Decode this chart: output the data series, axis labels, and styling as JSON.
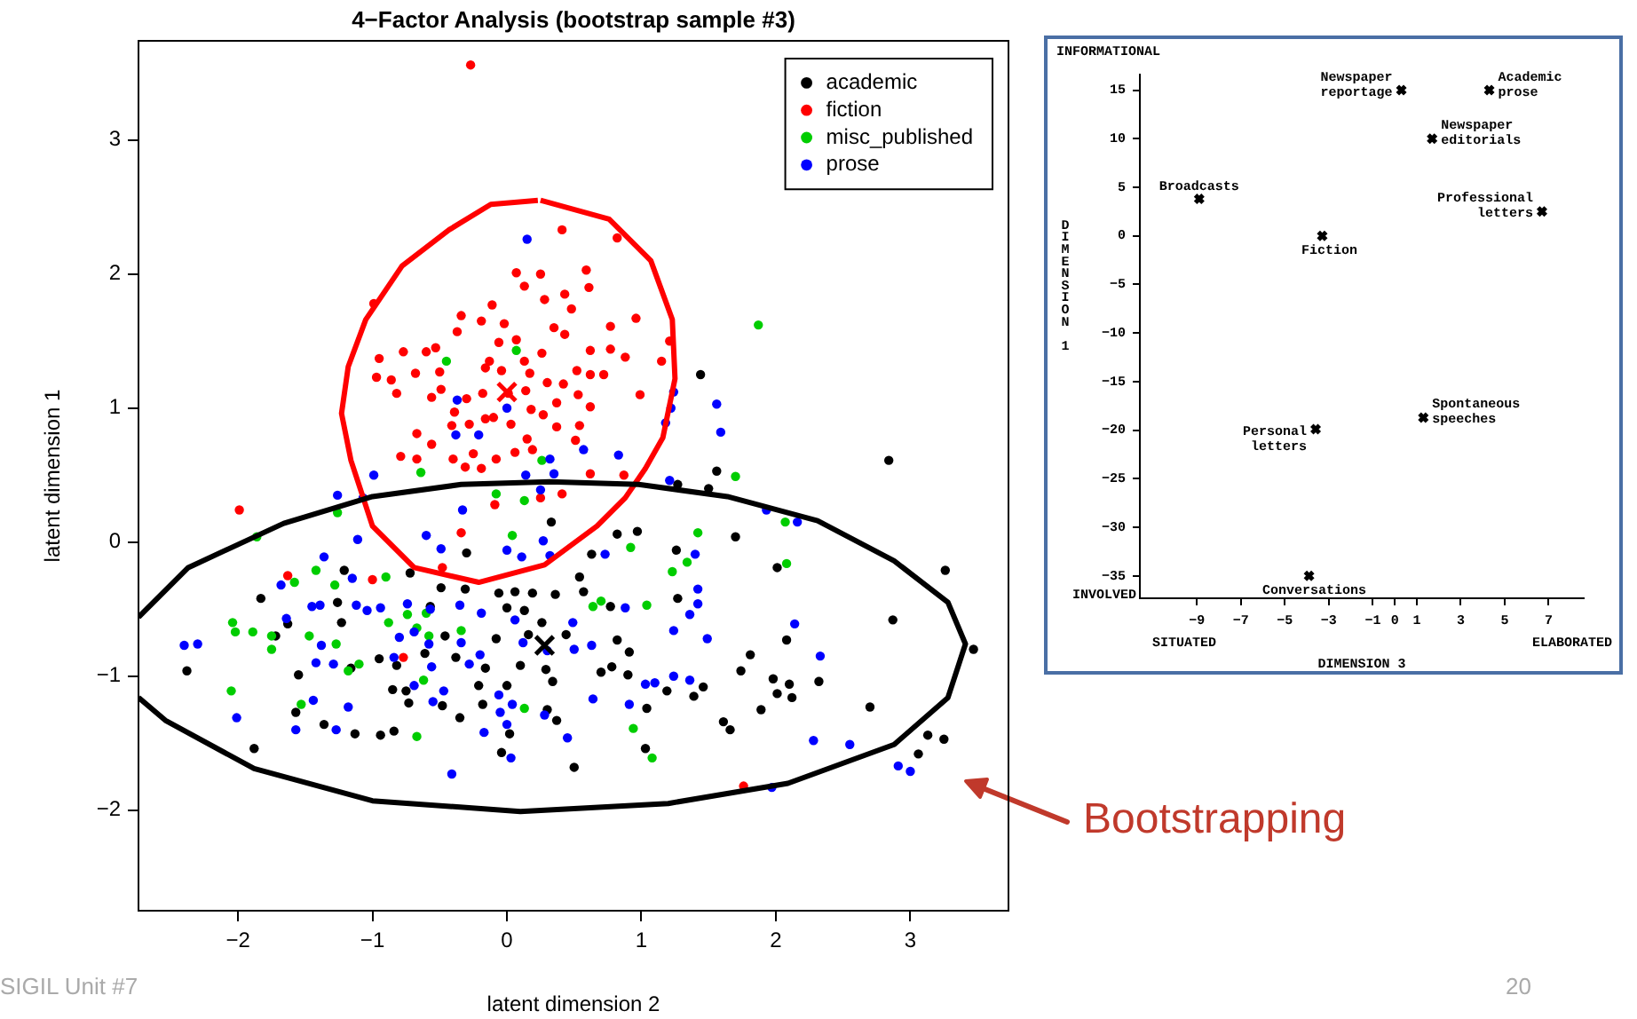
{
  "chart_data": [
    {
      "type": "scatter",
      "title": "4−Factor Analysis (bootstrap sample #3)",
      "xlabel": "latent dimension 2",
      "ylabel": "latent dimension 1",
      "xlim": [
        -2.74,
        3.73
      ],
      "ylim": [
        -2.75,
        3.74
      ],
      "xticks": [
        -2,
        -1,
        0,
        1,
        2,
        3
      ],
      "yticks": [
        -2,
        -1,
        0,
        1,
        2,
        3
      ],
      "legend": "top right",
      "marker": "circle",
      "annotations": [
        "Bootstrapping",
        "SIGIL Unit #7",
        "20"
      ],
      "series": [
        {
          "name": "academic",
          "color": "#000000",
          "x": [
            1.44,
            2.84,
            1.56,
            1.5,
            1.27,
            0.33,
            0.82,
            0.97,
            1.7,
            1.26,
            3.26,
            2.01,
            -0.3,
            -0.72,
            -1.21,
            -1.83,
            0.54,
            0.63,
            -0.49,
            -0.31,
            -0.06,
            0.06,
            0.19,
            0.36,
            0.57,
            0.77,
            1.27,
            -0.57,
            0.0,
            0.13,
            -1.26,
            -1.63,
            -1.72,
            -1.23,
            0.26,
            0.16,
            0.44,
            -0.46,
            -0.08,
            2.87,
            2.08,
            0.82,
            0.91,
            1.81,
            3.47,
            -2.38,
            -1.55,
            -1.16,
            -0.95,
            -0.82,
            -0.61,
            -0.38,
            -0.16,
            0.1,
            0.29,
            0.7,
            0.78,
            0.9,
            1.74,
            1.98,
            2.1,
            2.32,
            1.46,
            1.39,
            1.19,
            -0.21,
            0.0,
            0.34,
            -0.85,
            -0.73,
            -0.48,
            -0.18,
            0.3,
            0.37,
            1.04,
            1.89,
            2.01,
            2.12,
            2.7,
            -1.57,
            -1.36,
            -1.13,
            -0.94,
            -0.84,
            -0.35,
            0.02,
            -0.04,
            1.03,
            0.5,
            -1.88,
            1.61,
            1.66,
            3.13,
            3.25,
            3.06,
            -0.75
          ],
          "values": [
            1.25,
            0.61,
            0.53,
            0.4,
            0.43,
            0.15,
            0.06,
            0.08,
            0.04,
            -0.06,
            -0.21,
            -0.19,
            -0.08,
            -0.23,
            -0.21,
            -0.42,
            -0.26,
            -0.09,
            -0.34,
            -0.35,
            -0.38,
            -0.37,
            -0.38,
            -0.39,
            -0.37,
            -0.48,
            -0.42,
            -0.48,
            -0.49,
            -0.51,
            -0.45,
            -0.61,
            -0.7,
            -0.6,
            -0.6,
            -0.69,
            -0.69,
            -0.7,
            -0.72,
            -0.58,
            -0.73,
            -0.73,
            -0.82,
            -0.84,
            -0.8,
            -0.96,
            -0.99,
            -0.94,
            -0.87,
            -0.92,
            -0.83,
            -0.86,
            -0.94,
            -0.92,
            -0.95,
            -0.97,
            -0.93,
            -0.99,
            -0.96,
            -1.02,
            -1.06,
            -1.04,
            -1.08,
            -1.15,
            -1.11,
            -1.07,
            -1.07,
            -1.04,
            -1.1,
            -1.2,
            -1.22,
            -1.21,
            -1.25,
            -1.33,
            -1.24,
            -1.25,
            -1.13,
            -1.16,
            -1.23,
            -1.27,
            -1.36,
            -1.43,
            -1.44,
            -1.41,
            -1.31,
            -1.43,
            -1.57,
            -1.54,
            -1.68,
            -1.54,
            -1.34,
            -1.4,
            -1.44,
            -1.47,
            -1.58,
            -1.11
          ]
        },
        {
          "name": "fiction",
          "color": "#ff0000",
          "x": [
            -0.27,
            0.41,
            0.82,
            -0.99,
            0.07,
            0.25,
            0.59,
            0.61,
            0.13,
            -0.11,
            -0.34,
            -0.19,
            -0.02,
            0.28,
            0.43,
            0.48,
            0.96,
            0.77,
            0.35,
            0.43,
            -0.37,
            -0.95,
            -0.77,
            -0.6,
            -0.53,
            -0.06,
            0.07,
            0.26,
            0.13,
            0.62,
            0.77,
            0.88,
            1.15,
            -0.68,
            -0.5,
            -0.97,
            -0.86,
            -0.82,
            -0.56,
            -0.49,
            -0.13,
            -0.16,
            -0.04,
            0.17,
            0.52,
            0.62,
            0.72,
            0.3,
            0.42,
            -0.18,
            -0.3,
            0.01,
            0.14,
            0.53,
            0.99,
            1.21,
            0.37,
            0.62,
            -0.39,
            -0.28,
            -0.41,
            -0.16,
            -0.1,
            0.03,
            0.18,
            0.27,
            0.37,
            0.54,
            -0.67,
            -0.56,
            0.15,
            0.51,
            -0.4,
            -0.25,
            -0.08,
            0.06,
            0.19,
            -0.79,
            -0.67,
            -0.31,
            -0.19,
            -0.09,
            0.62,
            0.87,
            -1.99,
            -1.63,
            -1.0,
            -0.48,
            -0.34,
            -0.77,
            1.76,
            0.41,
            0.25
          ],
          "values": [
            3.56,
            2.33,
            2.27,
            1.78,
            2.01,
            2.0,
            2.03,
            1.9,
            1.91,
            1.77,
            1.69,
            1.65,
            1.63,
            1.81,
            1.85,
            1.74,
            1.67,
            1.61,
            1.6,
            1.55,
            1.57,
            1.37,
            1.42,
            1.42,
            1.45,
            1.49,
            1.51,
            1.41,
            1.35,
            1.43,
            1.44,
            1.38,
            1.35,
            1.26,
            1.27,
            1.23,
            1.21,
            1.11,
            1.08,
            1.14,
            1.35,
            1.3,
            1.28,
            1.26,
            1.28,
            1.25,
            1.25,
            1.19,
            1.18,
            1.11,
            1.07,
            1.11,
            1.13,
            1.1,
            1.1,
            1.5,
            1.04,
            1.01,
            0.97,
            0.88,
            0.87,
            0.92,
            0.93,
            0.88,
            0.99,
            0.95,
            0.86,
            0.87,
            0.81,
            0.73,
            0.77,
            0.76,
            0.62,
            0.66,
            0.62,
            0.67,
            0.69,
            0.64,
            0.62,
            0.56,
            0.55,
            0.28,
            0.51,
            0.5,
            0.24,
            -0.25,
            -0.28,
            -0.19,
            0.07,
            -0.86,
            -1.82,
            0.36,
            0.33
          ]
        },
        {
          "name": "misc_published",
          "color": "#00cd00",
          "x": [
            1.87,
            1.7,
            0.07,
            -0.45,
            0.26,
            -0.64,
            -0.08,
            0.13,
            -1.26,
            2.07,
            2.08,
            1.42,
            1.34,
            1.23,
            0.92,
            0.04,
            -1.86,
            -1.42,
            -1.58,
            -1.28,
            -0.9,
            -2.04,
            -2.02,
            -1.89,
            -1.75,
            -1.75,
            -1.47,
            -1.27,
            -1.1,
            -1.18,
            -0.88,
            -0.74,
            -0.6,
            -0.58,
            -0.67,
            -0.34,
            -0.62,
            -2.05,
            -1.53,
            -0.67,
            0.13,
            0.64,
            0.7,
            1.04,
            0.94,
            1.08
          ],
          "values": [
            1.62,
            0.49,
            1.43,
            1.35,
            0.61,
            0.52,
            0.36,
            0.31,
            0.22,
            0.15,
            -0.16,
            0.07,
            -0.15,
            -0.22,
            -0.04,
            0.05,
            0.04,
            -0.21,
            -0.3,
            -0.32,
            -0.26,
            -0.6,
            -0.67,
            -0.67,
            -0.7,
            -0.8,
            -0.7,
            -0.76,
            -0.91,
            -0.96,
            -0.6,
            -0.54,
            -0.53,
            -0.7,
            -0.64,
            -0.66,
            -1.03,
            -1.11,
            -1.21,
            -1.45,
            -1.24,
            -0.48,
            -0.44,
            -0.47,
            -1.39,
            -1.61
          ]
        },
        {
          "name": "prose",
          "color": "#0000ff",
          "x": [
            0.15,
            1.56,
            1.59,
            1.24,
            1.22,
            1.18,
            0.57,
            0.83,
            -0.37,
            0.0,
            -0.38,
            -0.21,
            0.32,
            0.35,
            -0.99,
            0.14,
            1.21,
            -1.26,
            -1.07,
            1.93,
            -0.33,
            0.25,
            2.16,
            -2.4,
            -2.3,
            -1.68,
            -1.36,
            -1.15,
            -1.11,
            -1.64,
            -1.45,
            -1.39,
            -1.12,
            -1.04,
            -0.94,
            -0.74,
            -0.57,
            -0.35,
            -0.8,
            -0.69,
            -0.58,
            -0.34,
            -1.38,
            -1.29,
            -1.42,
            -0.84,
            -0.56,
            -0.28,
            -0.2,
            -0.69,
            -0.47,
            -0.55,
            -1.44,
            -1.18,
            -1.27,
            -1.57,
            -2.01,
            -0.06,
            0.04,
            -0.05,
            0.0,
            -0.17,
            0.03,
            -0.41,
            0.28,
            0.45,
            0.64,
            0.91,
            0.5,
            0.63,
            0.3,
            0.12,
            0.49,
            0.06,
            -0.19,
            0.88,
            1.42,
            1.36,
            1.42,
            1.4,
            0.73,
            1.24,
            1.49,
            2.14,
            2.33,
            1.24,
            1.36,
            1.03,
            1.1,
            2.28,
            2.55,
            2.91,
            3.0,
            1.97,
            0.32,
            0.11,
            0.27,
            0.0,
            -0.6,
            -0.49
          ],
          "values": [
            2.26,
            1.03,
            0.82,
            1.12,
            1.0,
            0.89,
            0.69,
            0.65,
            1.06,
            1.0,
            0.8,
            0.8,
            0.62,
            0.51,
            0.5,
            0.5,
            0.46,
            0.35,
            0.33,
            0.24,
            0.24,
            0.39,
            0.15,
            -0.77,
            -0.76,
            -0.32,
            -0.11,
            -0.27,
            0.02,
            -0.57,
            -0.48,
            -0.47,
            -0.47,
            -0.51,
            -0.49,
            -0.46,
            -0.5,
            -0.47,
            -0.71,
            -0.67,
            -0.76,
            -0.75,
            -0.77,
            -0.91,
            -0.9,
            -0.86,
            -0.93,
            -0.91,
            -0.84,
            -1.07,
            -1.11,
            -1.19,
            -1.18,
            -1.23,
            -1.4,
            -1.4,
            -1.31,
            -1.14,
            -1.21,
            -1.27,
            -1.36,
            -1.42,
            -1.61,
            -1.73,
            -1.29,
            -1.46,
            -1.17,
            -1.21,
            -0.8,
            -0.77,
            -0.81,
            -0.75,
            -0.6,
            -0.58,
            -0.53,
            -0.49,
            -0.46,
            -0.54,
            -0.35,
            -0.09,
            -0.09,
            -0.66,
            -0.72,
            -0.61,
            -0.85,
            -1.0,
            -1.03,
            -1.06,
            -1.05,
            -1.48,
            -1.51,
            -1.67,
            -1.71,
            -1.83,
            -0.1,
            -0.11,
            0.01,
            -0.06,
            0.05,
            -0.05
          ]
        },
        {
          "type": "line",
          "color": "#ff0000",
          "marker": "none",
          "x": [
            0.25,
            0.76,
            1.07,
            1.23,
            1.25,
            1.16,
            1.03,
            0.88,
            0.67,
            0.28,
            -0.21,
            -0.69,
            -1.0,
            -1.16,
            -1.23,
            -1.18,
            -1.05,
            -0.78,
            -0.43,
            -0.12,
            0.23
          ],
          "values": [
            2.55,
            2.41,
            2.1,
            1.66,
            1.22,
            0.78,
            0.55,
            0.33,
            0.12,
            -0.17,
            -0.3,
            -0.19,
            0.12,
            0.61,
            0.96,
            1.31,
            1.66,
            2.06,
            2.33,
            2.52,
            2.55
          ]
        },
        {
          "type": "line",
          "color": "#000000",
          "marker": "none",
          "x": [
            -2.74,
            -2.37,
            -1.66,
            -1.0,
            -0.34,
            0.32,
            0.98,
            1.64,
            2.31,
            2.88,
            3.28,
            3.41,
            3.28,
            2.88,
            2.09,
            1.2,
            0.1,
            -1.0,
            -1.88,
            -2.54,
            -2.74
          ],
          "values": [
            -0.56,
            -0.19,
            0.14,
            0.34,
            0.43,
            0.45,
            0.43,
            0.34,
            0.16,
            -0.14,
            -0.45,
            -0.76,
            -1.16,
            -1.51,
            -1.8,
            -1.95,
            -2.01,
            -1.93,
            -1.69,
            -1.33,
            -1.16
          ]
        },
        {
          "type": "scatter",
          "color": "#ff0000",
          "marker": "cross",
          "x": [
            0.0
          ],
          "values": [
            1.12
          ]
        },
        {
          "type": "scatter",
          "color": "#000000",
          "marker": "cross",
          "x": [
            0.28
          ],
          "values": [
            -0.77
          ]
        }
      ]
    },
    {
      "type": "scatter",
      "xlabel": "DIMENSION 3",
      "ylabel": "DIMENSION 1",
      "xlim": [
        -11.6,
        8.6
      ],
      "ylim": [
        -37.3,
        16.6
      ],
      "xticks": [
        -9,
        -7,
        -5,
        -3,
        -1,
        0,
        1,
        3,
        5,
        7
      ],
      "yticks": [
        -35,
        -30,
        -25,
        -20,
        -15,
        -10,
        -5,
        0,
        5,
        10,
        15
      ],
      "marker": "cross",
      "annotations": [
        "INFORMATIONAL",
        "INVOLVED",
        "SITUATED",
        "ELABORATED",
        {
          "text": "Newspaper\nreportage",
          "x": 0.3,
          "y": 15
        },
        {
          "text": "Academic\nprose",
          "x": 4.3,
          "y": 15
        },
        {
          "text": "Newspaper\neditorials",
          "x": 1.7,
          "y": 10
        },
        {
          "text": "Broadcasts",
          "x": -8.9,
          "y": 3.8
        },
        {
          "text": "Professional\nletters",
          "x": 6.7,
          "y": 2.5
        },
        {
          "text": "Fiction",
          "x": -3.3,
          "y": 0
        },
        {
          "text": "Spontaneous\nspeeches",
          "x": 1.3,
          "y": -18.7
        },
        {
          "text": "Personal\nletters",
          "x": -3.6,
          "y": -19.9
        },
        {
          "text": "Conversations",
          "x": -3.9,
          "y": -35
        }
      ],
      "series": [
        {
          "color": "#000000",
          "x": [
            0.3,
            4.3,
            1.7,
            -8.9,
            6.7,
            -3.3,
            1.3,
            -3.6,
            -3.9
          ],
          "values": [
            15,
            15,
            10,
            3.8,
            2.5,
            0,
            -18.7,
            -19.9,
            -35
          ]
        }
      ]
    }
  ]
}
